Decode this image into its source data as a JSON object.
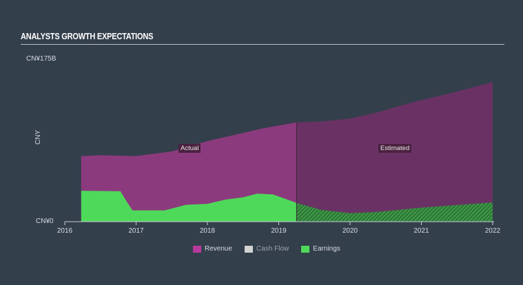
{
  "chart_data": {
    "type": "area",
    "title": "ANALYSTS GROWTH EXPECTATIONS",
    "ylabel": "CNY",
    "y_tick_labels": [
      "CN¥175B",
      "CN¥0"
    ],
    "ylim": [
      0,
      175
    ],
    "xlim": [
      2016,
      2022
    ],
    "x_tick_labels": [
      "2016",
      "2017",
      "2018",
      "2019",
      "2020",
      "2021",
      "2022"
    ],
    "actual_estimated_split": 2019.25,
    "region_labels": {
      "actual": "Actual",
      "estimated": "Estimated"
    },
    "series": [
      {
        "name": "Revenue",
        "color": "#b83a9c",
        "points": [
          [
            2016.23,
            70
          ],
          [
            2016.5,
            71
          ],
          [
            2017.0,
            70
          ],
          [
            2017.5,
            75
          ],
          [
            2018.0,
            86
          ],
          [
            2018.4,
            93
          ],
          [
            2018.8,
            100
          ],
          [
            2019.25,
            106
          ],
          [
            2019.6,
            107
          ],
          [
            2020.0,
            110
          ],
          [
            2020.4,
            117
          ],
          [
            2020.9,
            128
          ],
          [
            2021.4,
            137
          ],
          [
            2022.0,
            149
          ]
        ]
      },
      {
        "name": "Cash Flow",
        "color": "#d3d3d3",
        "points": []
      },
      {
        "name": "Earnings",
        "color": "#4fd95a",
        "points": [
          [
            2016.23,
            33
          ],
          [
            2016.78,
            32.5
          ],
          [
            2016.88,
            20
          ],
          [
            2016.95,
            12
          ],
          [
            2017.4,
            12
          ],
          [
            2017.7,
            18
          ],
          [
            2018.0,
            19
          ],
          [
            2018.25,
            23.5
          ],
          [
            2018.5,
            26
          ],
          [
            2018.7,
            30
          ],
          [
            2018.92,
            29
          ],
          [
            2019.07,
            25
          ],
          [
            2019.25,
            20
          ],
          [
            2019.6,
            12.5
          ],
          [
            2020.0,
            9
          ],
          [
            2020.4,
            10.5
          ],
          [
            2021.0,
            15
          ],
          [
            2022.0,
            20.5
          ]
        ]
      }
    ],
    "legend_placement": "bottom-center"
  }
}
